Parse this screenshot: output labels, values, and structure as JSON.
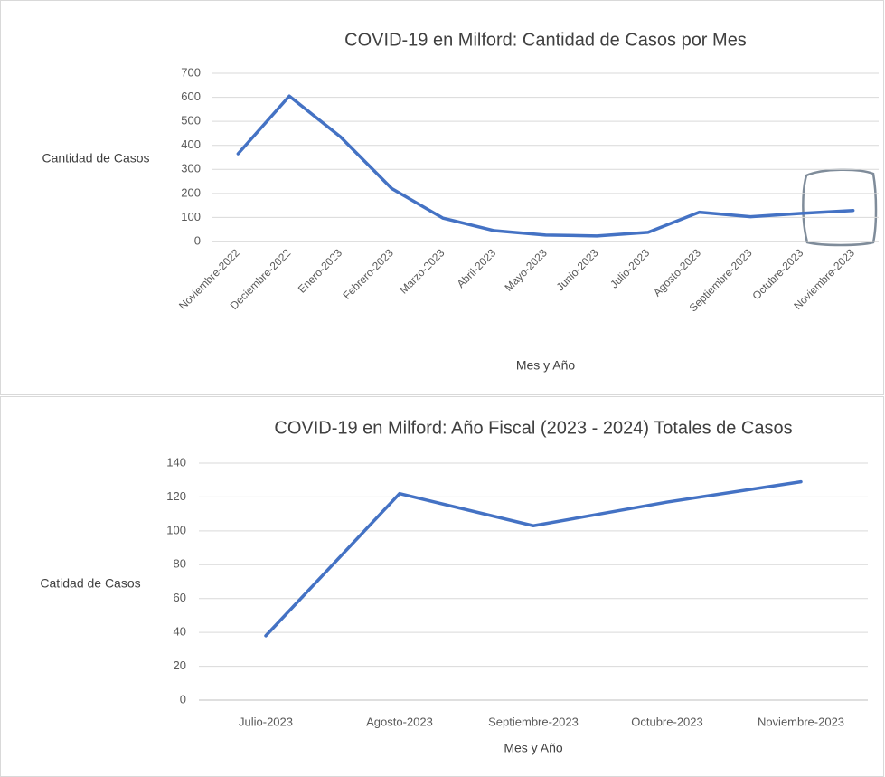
{
  "chart_data": [
    {
      "type": "line",
      "title": "COVID-19 en Milford: Cantidad de Casos por Mes",
      "x_label": "Mes y Año",
      "y_label": "Cantidad de Casos",
      "categories": [
        "Noviembre-2022",
        "Deciembre-2022",
        "Enero-2023",
        "Febrero-2023",
        "Marzo-2023",
        "Abril-2023",
        "Mayo-2023",
        "Junio-2023",
        "Julio-2023",
        "Agosto-2023",
        "Septiembre-2023",
        "Octubre-2023",
        "Noviembre-2023"
      ],
      "values": [
        365,
        605,
        435,
        220,
        97,
        45,
        27,
        23,
        38,
        122,
        103,
        117,
        129
      ],
      "color": "#4472c4",
      "ylim": [
        0,
        700
      ],
      "yticks": [
        0,
        100,
        200,
        300,
        400,
        500,
        600,
        700
      ],
      "grid": true
    },
    {
      "type": "line",
      "title": "COVID-19 en Milford: Año Fiscal (2023 - 2024) Totales de Casos",
      "x_label": "Mes y Año",
      "y_label": "Catidad de Casos",
      "categories": [
        "Julio-2023",
        "Agosto-2023",
        "Septiembre-2023",
        "Octubre-2023",
        "Noviembre-2023"
      ],
      "values": [
        38,
        122,
        103,
        117,
        129
      ],
      "color": "#4472c4",
      "ylim": [
        0,
        140
      ],
      "yticks": [
        0,
        20,
        40,
        60,
        80,
        100,
        120,
        140
      ],
      "grid": true
    }
  ]
}
